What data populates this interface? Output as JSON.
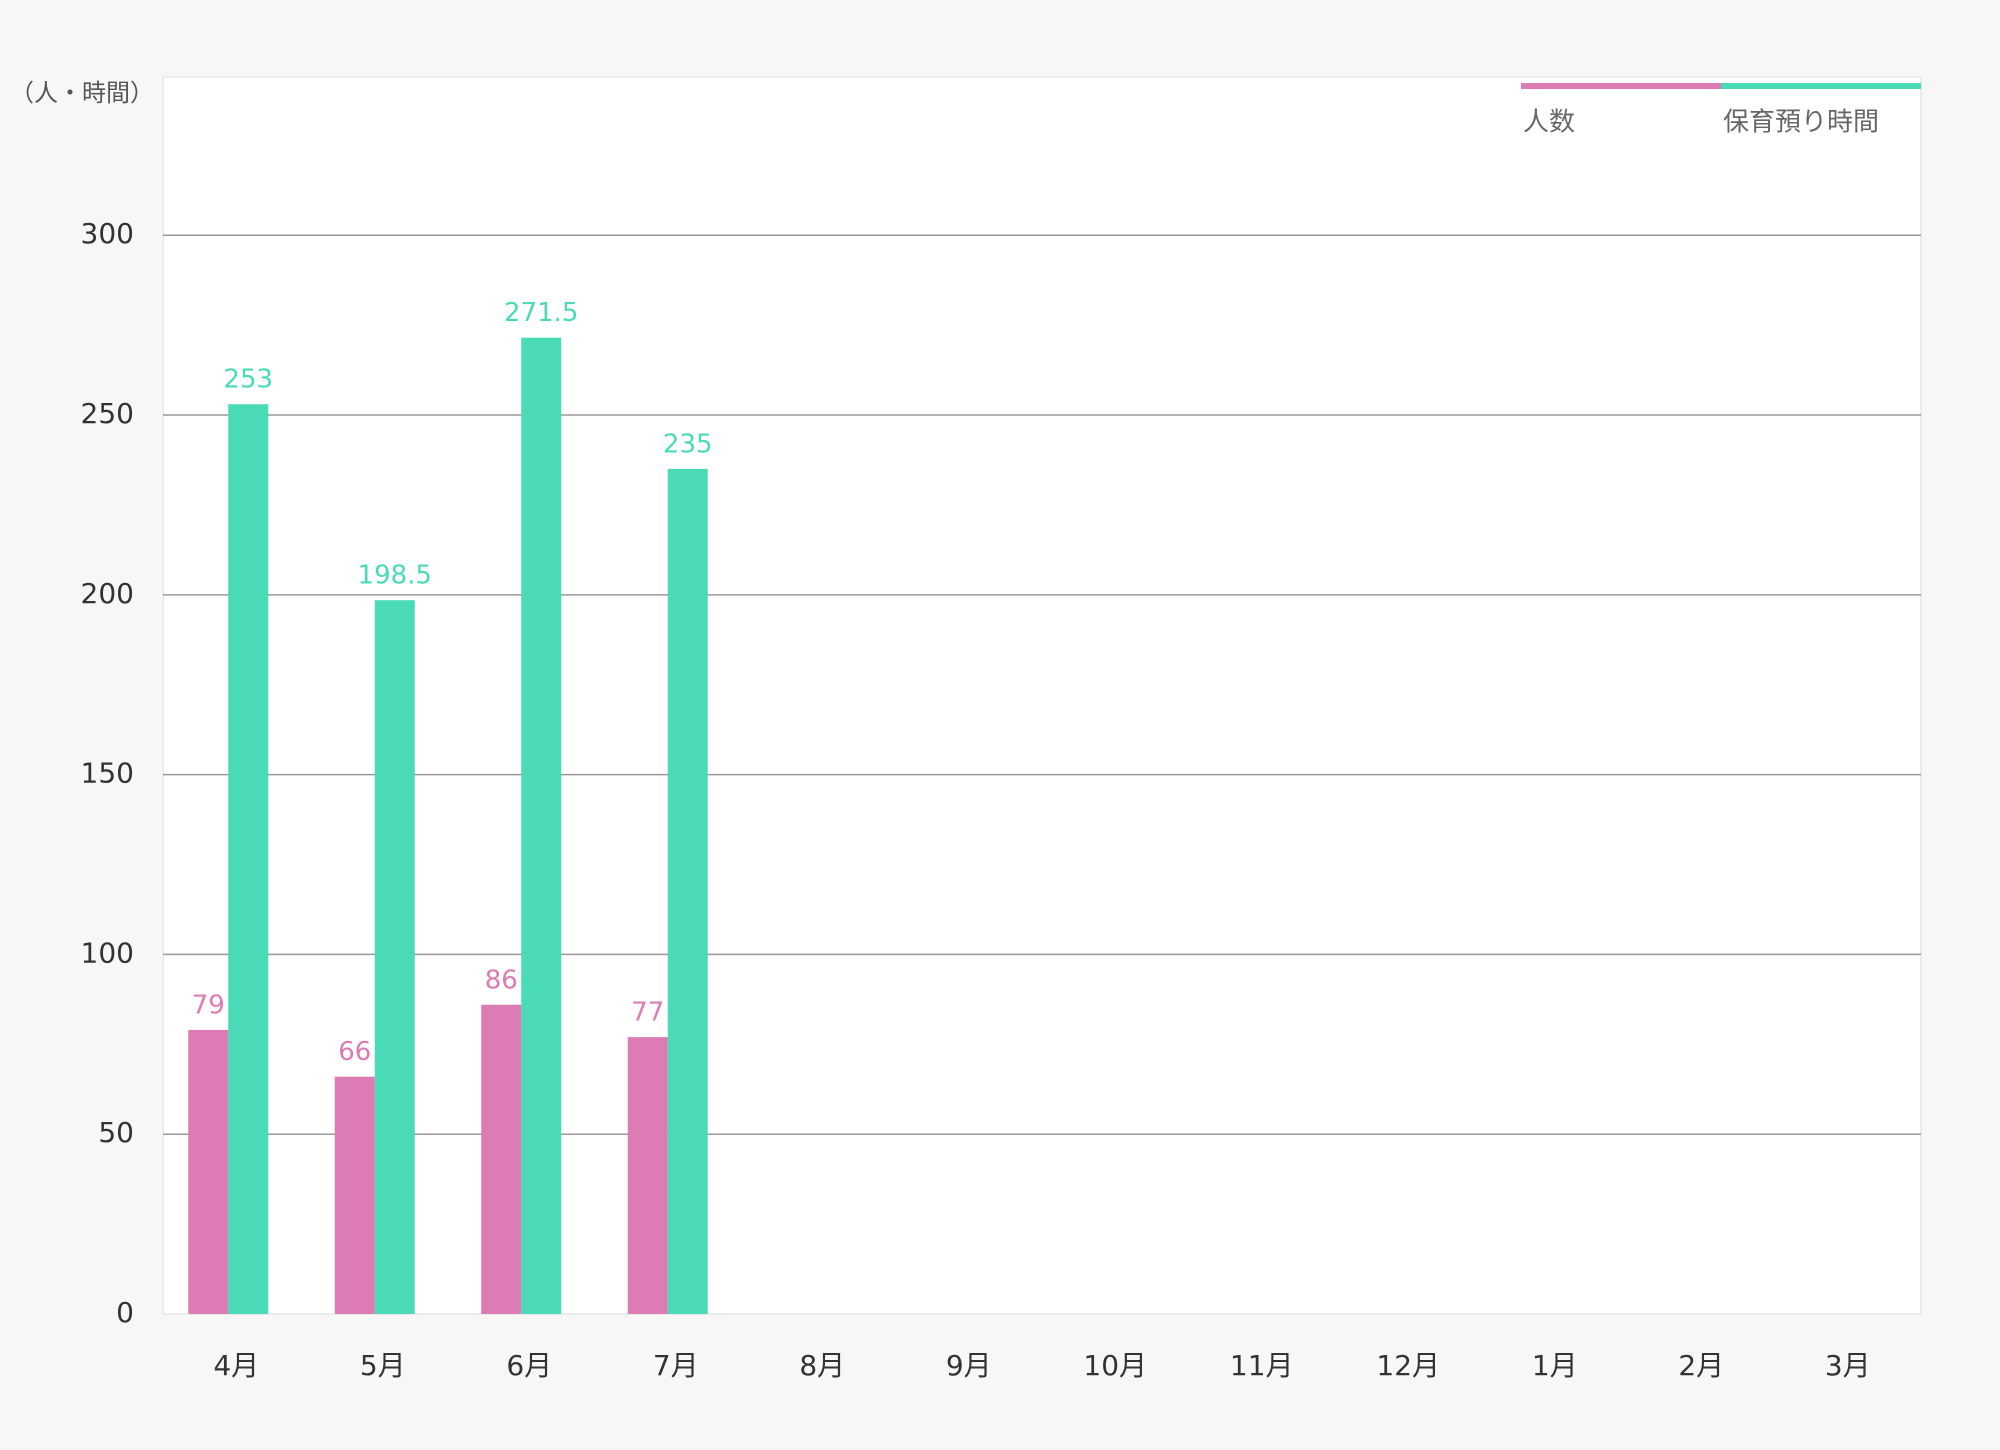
{
  "chart_data": {
    "type": "bar",
    "y_label": "（人・時間）",
    "categories": [
      "4月",
      "5月",
      "6月",
      "7月",
      "8月",
      "9月",
      "10月",
      "11月",
      "12月",
      "1月",
      "2月",
      "3月"
    ],
    "series": [
      {
        "name": "人数",
        "color": "#dd7bb4",
        "values": [
          79,
          66,
          86,
          77,
          null,
          null,
          null,
          null,
          null,
          null,
          null,
          null
        ]
      },
      {
        "name": "保育預り時間",
        "color": "#4adab8",
        "values": [
          253,
          198.5,
          271.5,
          235,
          null,
          null,
          null,
          null,
          null,
          null,
          null,
          null
        ]
      }
    ],
    "ylim": [
      0,
      344
    ],
    "yticks": [
      0,
      50,
      100,
      150,
      200,
      250,
      300
    ],
    "grid": true,
    "legend": "top-right",
    "data_labels": true
  }
}
